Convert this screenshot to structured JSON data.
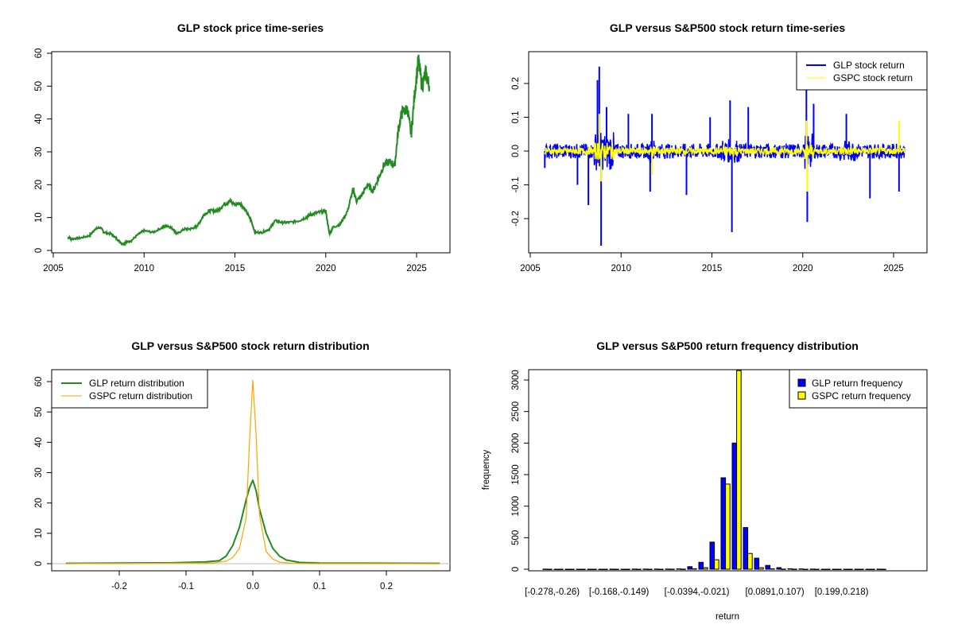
{
  "chart_data": [
    {
      "type": "line",
      "title": "GLP stock price time-series",
      "xlabel": "",
      "ylabel": "",
      "xlim": [
        2005,
        2026
      ],
      "ylim": [
        0,
        60
      ],
      "xticks": [
        2005,
        2010,
        2015,
        2020,
        2025
      ],
      "yticks": [
        0,
        10,
        20,
        30,
        40,
        50,
        60
      ],
      "series": [
        {
          "name": "GLP price",
          "color": "#228B22",
          "x": [
            2005.8,
            2006.0,
            2006.5,
            2007.0,
            2007.3,
            2007.6,
            2007.8,
            2008.2,
            2008.5,
            2008.8,
            2009.0,
            2009.3,
            2009.7,
            2010.0,
            2010.5,
            2011.0,
            2011.3,
            2011.6,
            2011.8,
            2012.2,
            2012.5,
            2012.8,
            2013.0,
            2013.3,
            2013.6,
            2014.0,
            2014.4,
            2014.7,
            2015.0,
            2015.3,
            2015.6,
            2015.9,
            2016.1,
            2016.5,
            2016.9,
            2017.2,
            2017.6,
            2018.0,
            2018.5,
            2018.9,
            2019.2,
            2019.6,
            2020.0,
            2020.2,
            2020.4,
            2020.8,
            2021.2,
            2021.5,
            2021.7,
            2022.0,
            2022.3,
            2022.6,
            2022.9,
            2023.2,
            2023.5,
            2023.8,
            2024.0,
            2024.2,
            2024.5,
            2024.7,
            2024.9,
            2025.1,
            2025.3,
            2025.5,
            2025.7
          ],
          "y": [
            4,
            3.5,
            3.8,
            4.5,
            6.5,
            7,
            5.5,
            5,
            3.5,
            2,
            2.5,
            3,
            5,
            6,
            5.5,
            7,
            7.5,
            6.5,
            5,
            6.5,
            6.5,
            7,
            8,
            11,
            12,
            12,
            14,
            15,
            14,
            14.5,
            12,
            9,
            5.5,
            5.5,
            6.5,
            9,
            8.5,
            8.5,
            9,
            10,
            11,
            11.5,
            12,
            5,
            7,
            8,
            12,
            18.5,
            15,
            17,
            20,
            18,
            22,
            26,
            27,
            26,
            37,
            42,
            43,
            35,
            48,
            58,
            50,
            54,
            50
          ]
        }
      ]
    },
    {
      "type": "line",
      "title": "GLP versus S&P500 stock return time-series",
      "xlabel": "",
      "ylabel": "",
      "xlim": [
        2005,
        2026
      ],
      "ylim": [
        -0.28,
        0.26
      ],
      "xticks": [
        2005,
        2010,
        2015,
        2020,
        2025
      ],
      "yticks": [
        -0.2,
        -0.1,
        0.0,
        0.1,
        0.2
      ],
      "ytick_labels": [
        "-0.2",
        "-0.1",
        "0.0",
        "0.1",
        "0.2"
      ],
      "legend": {
        "position": "top-right",
        "entries": [
          "GLP stock return",
          "GSPC stock return"
        ]
      },
      "series": [
        {
          "name": "GLP stock return",
          "color": "#0000FF",
          "spikes_x": [
            2005.8,
            2007.6,
            2008.2,
            2008.7,
            2008.8,
            2008.9,
            2009.2,
            2010.4,
            2011.6,
            2011.7,
            2013.6,
            2014.9,
            2016.0,
            2016.1,
            2017.0,
            2020.2,
            2020.25,
            2020.6,
            2022.4,
            2023.7,
            2025.3
          ],
          "spikes_y": [
            -0.05,
            -0.1,
            -0.16,
            0.21,
            0.25,
            -0.28,
            0.13,
            0.11,
            -0.12,
            0.11,
            -0.13,
            0.1,
            0.15,
            -0.24,
            0.13,
            0.21,
            -0.21,
            0.14,
            0.11,
            -0.14,
            -0.12
          ]
        },
        {
          "name": "GSPC stock return",
          "color": "#FFFF00",
          "spikes_x": [
            2008.8,
            2008.9,
            2011.7,
            2020.2,
            2020.25,
            2025.3
          ],
          "spikes_y": [
            0.11,
            -0.09,
            -0.07,
            0.09,
            -0.12,
            0.09
          ]
        }
      ]
    },
    {
      "type": "line",
      "title": "GLP versus S&P500 stock return distribution",
      "xlabel": "",
      "ylabel": "",
      "xlim": [
        -0.3,
        0.3
      ],
      "ylim": [
        0,
        62
      ],
      "xticks": [
        -0.2,
        -0.1,
        0.0,
        0.1,
        0.2
      ],
      "xtick_labels": [
        "-0.2",
        "-0.1",
        "0.0",
        "0.1",
        "0.2"
      ],
      "yticks": [
        0,
        10,
        20,
        30,
        40,
        50,
        60
      ],
      "legend": {
        "position": "top-left",
        "entries": [
          "GLP return distribution",
          "GSPC return distribution"
        ]
      },
      "series": [
        {
          "name": "GLP return distribution",
          "color": "#228B22",
          "x": [
            -0.28,
            -0.12,
            -0.07,
            -0.05,
            -0.04,
            -0.03,
            -0.02,
            -0.01,
            -0.005,
            0,
            0.005,
            0.01,
            0.02,
            0.03,
            0.04,
            0.05,
            0.07,
            0.1,
            0.28
          ],
          "y": [
            0.1,
            0.3,
            0.6,
            1,
            2.5,
            6,
            12,
            21,
            25,
            27.5,
            24,
            18,
            10,
            5,
            2.5,
            1.2,
            0.4,
            0.2,
            0.1
          ]
        },
        {
          "name": "GSPC return distribution",
          "color": "#FFA500",
          "x": [
            -0.28,
            -0.06,
            -0.04,
            -0.03,
            -0.02,
            -0.01,
            -0.005,
            0,
            0.005,
            0.01,
            0.02,
            0.03,
            0.04,
            0.06,
            0.09,
            0.28
          ],
          "y": [
            0,
            0.2,
            0.8,
            2,
            5,
            15,
            40,
            60.5,
            42,
            16,
            4,
            1.5,
            0.5,
            0.1,
            0,
            0
          ]
        }
      ]
    },
    {
      "type": "bar",
      "title": "GLP versus S&P500 return frequency distribution",
      "xlabel": "return",
      "ylabel": "frequency",
      "ylim": [
        0,
        3150
      ],
      "yticks": [
        0,
        500,
        1000,
        1500,
        2000,
        2500,
        3000
      ],
      "tick_labels": [
        "[-0.278,-0.26)",
        "[-0.168,-0.149)",
        "[-0.0394,-0.021)",
        "[0.0891,0.107)",
        "[0.199,0.218)"
      ],
      "tick_bins": [
        0,
        6,
        13,
        20,
        26
      ],
      "legend": {
        "position": "top-right",
        "entries": [
          "GLP return frequency",
          "GSPC return frequency"
        ]
      },
      "series": [
        {
          "name": "GLP return frequency",
          "color": "#0000FF",
          "values": [
            1,
            0,
            0,
            0,
            0,
            0,
            1,
            0,
            3,
            3,
            2,
            3,
            5,
            40,
            110,
            430,
            1450,
            2000,
            660,
            175,
            60,
            25,
            8,
            5,
            3,
            0,
            0,
            0,
            0,
            0,
            1
          ]
        },
        {
          "name": "GSPC return frequency",
          "color": "#FFFF00",
          "values": [
            0,
            0,
            0,
            0,
            0,
            0,
            0,
            0,
            0,
            0,
            0,
            1,
            1,
            8,
            25,
            150,
            1350,
            3150,
            250,
            25,
            8,
            3,
            1,
            0,
            0,
            0,
            0,
            0,
            0,
            0,
            0
          ]
        }
      ]
    }
  ]
}
